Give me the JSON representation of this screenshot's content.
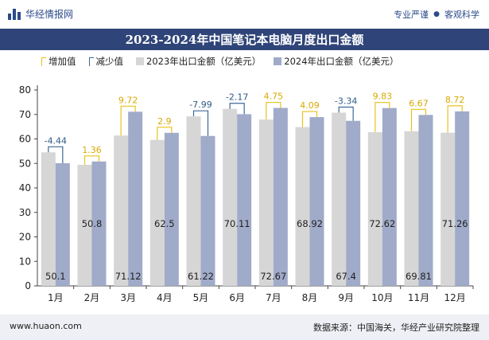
{
  "brand": {
    "name": "华经情报网"
  },
  "tags": [
    "专业严谨",
    "客观科学"
  ],
  "title": "2023-2024年中国笔记本电脑月度出口金额",
  "legend": {
    "increase": "增加值",
    "decrease": "减少值",
    "s2023": "2023年出口金额（亿美元）",
    "s2024": "2024年出口金额（亿美元）"
  },
  "footer": {
    "url": "www.huaon.com",
    "source": "数据来源：中国海关，华经产业研究院整理"
  },
  "colors": {
    "s2023": "#d6d6d6",
    "s2024": "#a0abc9",
    "increase": "#e8c21b",
    "decrease": "#3d6a97",
    "title_bg": "#2f4478"
  },
  "chart_data": {
    "type": "bar",
    "categories": [
      "1月",
      "2月",
      "3月",
      "4月",
      "5月",
      "6月",
      "7月",
      "8月",
      "9月",
      "10月",
      "11月",
      "12月"
    ],
    "series": [
      {
        "name": "2023年出口金额（亿美元）",
        "values": [
          54.54,
          49.44,
          61.4,
          59.6,
          69.21,
          72.28,
          67.92,
          64.83,
          70.74,
          62.79,
          63.14,
          62.54
        ]
      },
      {
        "name": "2024年出口金额（亿美元）",
        "values": [
          50.1,
          50.8,
          71.12,
          62.5,
          61.22,
          70.11,
          72.67,
          68.92,
          67.4,
          72.62,
          69.81,
          71.26
        ]
      }
    ],
    "change": [
      -4.44,
      1.36,
      9.72,
      2.9,
      -7.99,
      -2.17,
      4.75,
      4.09,
      -3.34,
      9.83,
      6.67,
      8.72
    ],
    "change_labels": [
      "-4.44",
      "1.36",
      "9.72",
      "2.9",
      "-7.99",
      "-2.17",
      "4.75",
      "4.09",
      "-3.34",
      "9.83",
      "6.67",
      "8.72"
    ],
    "value_labels": [
      "50.1",
      "50.8",
      "71.12",
      "62.5",
      "61.22",
      "70.11",
      "72.67",
      "68.92",
      "67.4",
      "72.62",
      "69.81",
      "71.26"
    ],
    "yticks": [
      "0",
      "10",
      "20",
      "30",
      "40",
      "50",
      "60",
      "70",
      "80"
    ],
    "ylim": [
      0,
      80
    ],
    "grid": false,
    "legend_position": "top-left"
  }
}
